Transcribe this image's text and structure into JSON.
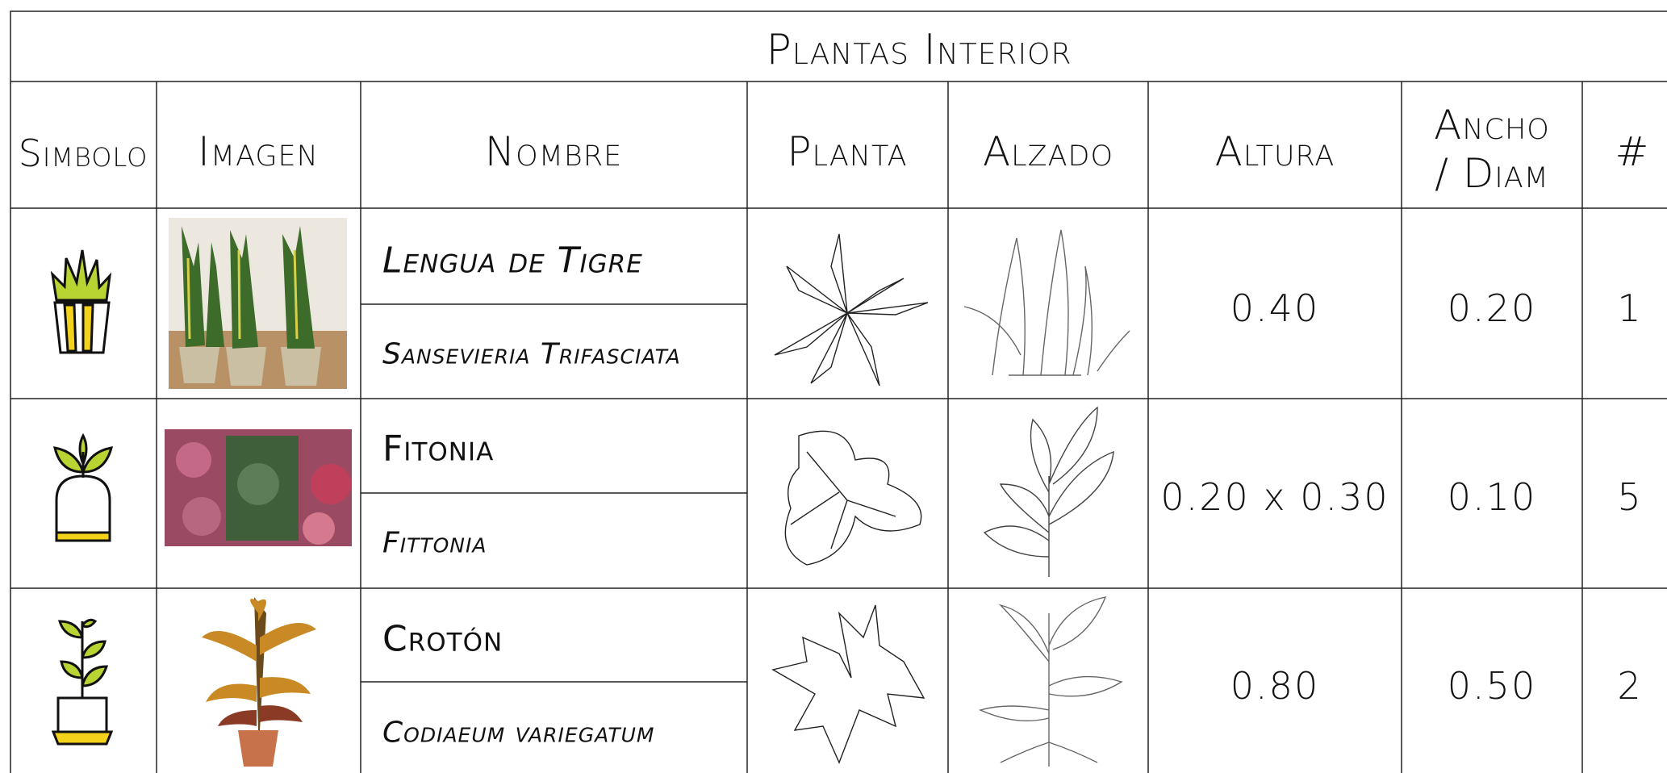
{
  "title": "Plantas Interior",
  "headers": [
    "Simbolo",
    "Imagen",
    "Nombre",
    "Planta",
    "Alzado",
    "Altura",
    "Ancho / Diam",
    "#"
  ],
  "rows": [
    {
      "name": "Lengua de Tigre",
      "scientific": "Sansevieria Trifasciata",
      "altura": "0.40",
      "ancho": "0.20",
      "count": "1"
    },
    {
      "name": "Fitonia",
      "scientific": "Fittonia",
      "altura": "0.20 x 0.30",
      "ancho": "0.10",
      "count": "5"
    },
    {
      "name": "Crotón",
      "scientific": "Codiaeum variegatum",
      "altura": "0.80",
      "ancho": "0.50",
      "count": "2"
    }
  ]
}
